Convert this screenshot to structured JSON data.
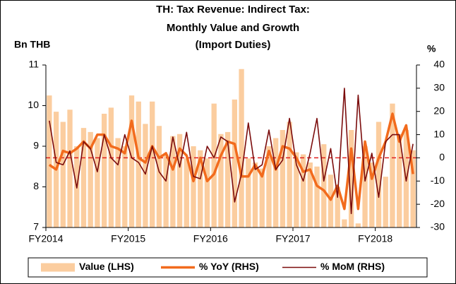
{
  "chart_data": {
    "type": "combo",
    "title": [
      "TH: Tax Revenue: Indirect Tax:",
      "Monthly Value and Growth",
      "(Import Duties)"
    ],
    "y_label": "Bn THB",
    "y2_label": "%",
    "categories": [
      "FY2014",
      null,
      null,
      null,
      null,
      null,
      null,
      null,
      null,
      null,
      null,
      null,
      "FY2015",
      null,
      null,
      null,
      null,
      null,
      null,
      null,
      null,
      null,
      null,
      null,
      "FY2016",
      null,
      null,
      null,
      null,
      null,
      null,
      null,
      null,
      null,
      null,
      null,
      "FY2017",
      null,
      null,
      null,
      null,
      null,
      null,
      null,
      null,
      null,
      null,
      null,
      "FY2018",
      null,
      null,
      null,
      null,
      null
    ],
    "series": [
      {
        "name": "Value (LHS)",
        "type": "bar",
        "axis": "y",
        "color": "#fbcd9f",
        "values": [
          10.25,
          9.85,
          9.6,
          9.9,
          9.0,
          9.45,
          9.35,
          9.2,
          9.8,
          9.95,
          9.2,
          9.0,
          10.25,
          10.1,
          9.55,
          10.1,
          9.5,
          8.8,
          9.25,
          9.3,
          8.7,
          9.0,
          8.9,
          8.7,
          10.05,
          9.3,
          9.35,
          10.15,
          10.9,
          8.7,
          8.6,
          8.45,
          9.0,
          9.2,
          9.4,
          9.6,
          8.85,
          8.8,
          8.6,
          8.5,
          9.05,
          8.3,
          8.0,
          7.2,
          9.4,
          7.1,
          9.0,
          8.6,
          9.6,
          8.25,
          10.05,
          9.3,
          9.4,
          8.9
        ]
      },
      {
        "name": "% YoY (RHS)",
        "type": "line",
        "axis": "y2",
        "color": "#f26b1d",
        "width": 3.5,
        "values": [
          -3,
          -5,
          3,
          2,
          4,
          7,
          4,
          10,
          10,
          5,
          4,
          2,
          16,
          0,
          -2,
          5,
          0,
          2,
          -5,
          4,
          1,
          -10,
          0,
          -10,
          -7,
          1,
          7,
          6,
          -8,
          -8,
          -3,
          -8,
          3,
          -5,
          5,
          4,
          0,
          -6,
          -5,
          -12,
          -14,
          -18,
          -12,
          -22,
          4,
          -22,
          7,
          -9,
          0,
          7,
          19,
          7,
          14,
          -7
        ]
      },
      {
        "name": "% MoM (RHS)",
        "type": "line",
        "axis": "y2",
        "color": "#7b0c0c",
        "width": 1.6,
        "values": [
          16,
          -2,
          -3,
          3,
          -13,
          7,
          4,
          -6,
          10,
          0,
          -3,
          10,
          0,
          -2,
          -7,
          5,
          -6,
          -10,
          9,
          -4,
          11,
          -8,
          -9,
          5,
          0,
          9,
          7,
          -19,
          -7,
          15,
          -5,
          -3,
          12,
          -5,
          -1,
          17,
          -3,
          -10,
          2,
          17,
          -10,
          4,
          -17,
          30,
          -24,
          27,
          -10,
          2,
          -17,
          7,
          10,
          10,
          -10,
          6
        ]
      }
    ],
    "ylim": [
      7,
      11
    ],
    "yticks": [
      7,
      8,
      9,
      10,
      11
    ],
    "y2lim": [
      -30,
      40
    ],
    "y2ticks": [
      -30,
      -20,
      -10,
      0,
      10,
      20,
      30,
      40
    ],
    "reference_line": {
      "value": 0,
      "axis": "y2",
      "color": "#e02020"
    },
    "legend": "bottom"
  }
}
